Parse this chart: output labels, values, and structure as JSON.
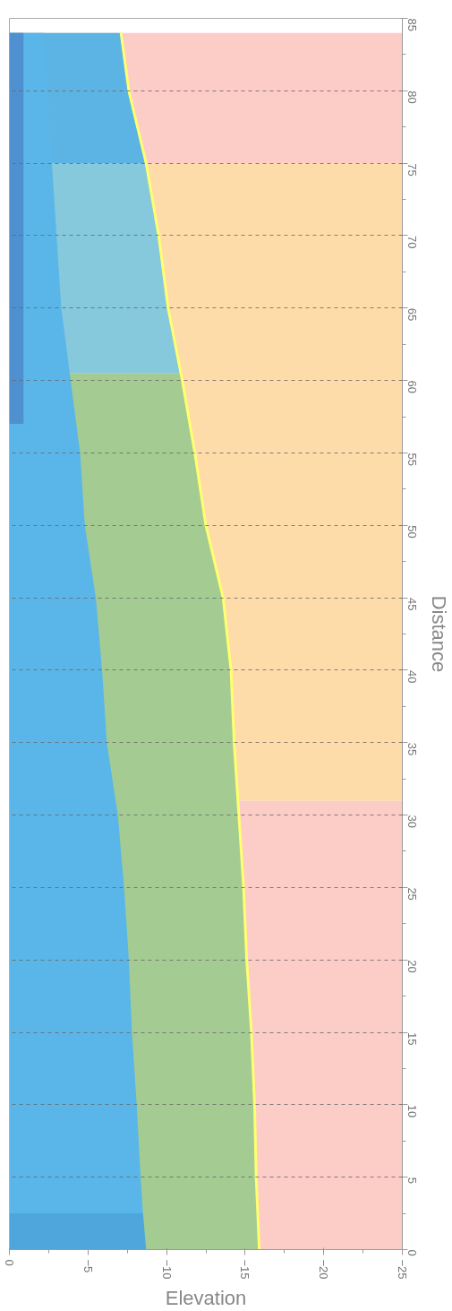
{
  "chart_data": {
    "type": "area",
    "orientation": "horizontal",
    "xlabel": "Elevation",
    "ylabel": "Distance",
    "xlim": [
      0,
      -25
    ],
    "xticks": [
      0,
      -5,
      -10,
      -15,
      -20,
      -25
    ],
    "ylim": [
      0,
      85
    ],
    "yticks": [
      0,
      5,
      10,
      15,
      20,
      25,
      30,
      35,
      40,
      45,
      50,
      55,
      60,
      65,
      70,
      75,
      80,
      85
    ],
    "grid": "y",
    "series": [
      {
        "color": "#fcccc6",
        "x": [
          0,
          31
        ],
        "values": [
          -25,
          -25
        ]
      },
      {
        "color": "#fddcaa",
        "x": [
          31,
          75
        ],
        "values": [
          -25,
          -25
        ]
      },
      {
        "color": "#fcccc6",
        "x": [
          75,
          84
        ],
        "values": [
          -25,
          -25
        ]
      },
      {
        "color": "#a4cc92",
        "x": [
          0,
          5,
          10,
          15,
          20,
          25,
          30,
          35,
          40,
          45,
          50,
          55,
          60,
          60.5
        ],
        "values": [
          -15.9,
          -15.7,
          -15.6,
          -15.4,
          -15.1,
          -14.9,
          -14.6,
          -14.3,
          -14.1,
          -13.6,
          -12.5,
          -11.8,
          -11.0,
          -10.9
        ]
      },
      {
        "color": "#86c8dc",
        "x": [
          60.5,
          65,
          70,
          75
        ],
        "values": [
          -10.9,
          -10.1,
          -9.5,
          -8.7
        ]
      },
      {
        "color": "#5cb4e4",
        "x": [
          75,
          80,
          84
        ],
        "values": [
          -8.7,
          -7.6,
          -7.1
        ]
      },
      {
        "color": "#4ea6dc",
        "x": [
          0,
          2.5
        ],
        "values": [
          -8.7,
          -8.5
        ]
      },
      {
        "color": "#5ab6e8",
        "x": [
          2.5,
          5,
          10,
          15,
          20,
          25,
          30,
          35,
          40,
          45,
          50,
          55,
          60,
          65,
          70,
          75,
          80,
          84
        ],
        "values": [
          -8.5,
          -8.35,
          -8.1,
          -7.8,
          -7.6,
          -7.3,
          -6.9,
          -6.2,
          -5.9,
          -5.5,
          -4.8,
          -4.5,
          -3.9,
          -3.3,
          -3.0,
          -2.7,
          -2.4,
          -2.2
        ]
      },
      {
        "color": "#4f90d0",
        "x": [
          57,
          84
        ],
        "values": [
          -0.9,
          -0.9
        ]
      },
      {
        "type": "line",
        "color": "#ffff70",
        "x": [
          0,
          5,
          10,
          15,
          20,
          25,
          30,
          35,
          40,
          45,
          50,
          55,
          60,
          65,
          70,
          75,
          80,
          84
        ],
        "values": [
          -15.9,
          -15.7,
          -15.6,
          -15.4,
          -15.1,
          -14.9,
          -14.6,
          -14.3,
          -14.1,
          -13.6,
          -12.5,
          -11.8,
          -11.0,
          -10.1,
          -9.5,
          -8.7,
          -7.6,
          -7.1
        ]
      }
    ]
  }
}
